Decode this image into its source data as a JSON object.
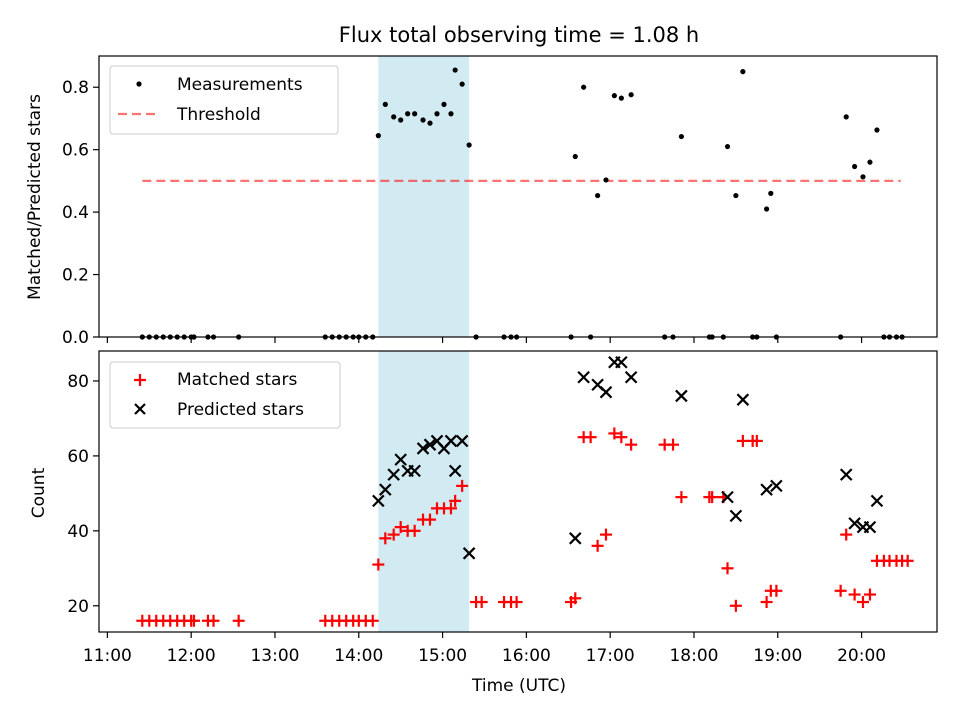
{
  "figure": {
    "title": "Flux total observing time = 1.08 h",
    "xlabel": "Time (UTC)",
    "xticks": [
      "11:00",
      "12:00",
      "13:00",
      "14:00",
      "15:00",
      "16:00",
      "17:00",
      "18:00",
      "19:00",
      "20:00"
    ]
  },
  "chart_data": [
    {
      "type": "scatter",
      "title": "Flux total observing time = 1.08 h",
      "xlabel": "",
      "ylabel": "Matched/Predicted stars",
      "xlim": [
        "10:54",
        "20:54"
      ],
      "ylim": [
        0,
        0.9
      ],
      "yticks": [
        "0.0",
        "0.2",
        "0.4",
        "0.6",
        "0.8"
      ],
      "legend_position": "upper-left",
      "grid": false,
      "shaded_interval": {
        "from": "14:14",
        "to": "15:19",
        "color": "#add8e6"
      },
      "threshold": {
        "name": "Threshold",
        "value": 0.5,
        "from": "11:25",
        "to": "20:28",
        "color": "#ff0000"
      },
      "series": [
        {
          "name": "Measurements",
          "marker": "dot",
          "color": "#000000",
          "points": [
            [
              "11:25",
              0
            ],
            [
              "11:30",
              0
            ],
            [
              "11:35",
              0
            ],
            [
              "11:40",
              0
            ],
            [
              "11:45",
              0
            ],
            [
              "11:50",
              0
            ],
            [
              "11:55",
              0
            ],
            [
              "12:00",
              0
            ],
            [
              "12:02",
              0
            ],
            [
              "12:12",
              0
            ],
            [
              "12:16",
              0
            ],
            [
              "12:34",
              0
            ],
            [
              "13:36",
              0
            ],
            [
              "13:41",
              0
            ],
            [
              "13:46",
              0
            ],
            [
              "13:51",
              0
            ],
            [
              "13:56",
              0
            ],
            [
              "14:00",
              0
            ],
            [
              "14:05",
              0
            ],
            [
              "14:10",
              0
            ],
            [
              "14:14",
              0.645
            ],
            [
              "14:19",
              0.745
            ],
            [
              "14:25",
              0.705
            ],
            [
              "14:30",
              0.695
            ],
            [
              "14:35",
              0.715
            ],
            [
              "14:40",
              0.715
            ],
            [
              "14:46",
              0.695
            ],
            [
              "14:51",
              0.685
            ],
            [
              "14:56",
              0.715
            ],
            [
              "15:01",
              0.745
            ],
            [
              "15:06",
              0.715
            ],
            [
              "15:09",
              0.855
            ],
            [
              "15:14",
              0.81
            ],
            [
              "15:19",
              0.615
            ],
            [
              "15:24",
              0
            ],
            [
              "15:44",
              0
            ],
            [
              "15:49",
              0
            ],
            [
              "15:53",
              0
            ],
            [
              "16:32",
              0
            ],
            [
              "16:35",
              0.578
            ],
            [
              "16:41",
              0.8
            ],
            [
              "16:46",
              0
            ],
            [
              "16:51",
              0.453
            ],
            [
              "16:57",
              0.503
            ],
            [
              "17:03",
              0.773
            ],
            [
              "17:08",
              0.765
            ],
            [
              "17:15",
              0.776
            ],
            [
              "17:39",
              0
            ],
            [
              "17:45",
              0
            ],
            [
              "17:51",
              0.642
            ],
            [
              "18:11",
              0
            ],
            [
              "18:13",
              0
            ],
            [
              "18:21",
              0
            ],
            [
              "18:24",
              0.61
            ],
            [
              "18:30",
              0.453
            ],
            [
              "18:35",
              0.85
            ],
            [
              "18:42",
              0
            ],
            [
              "18:45",
              0
            ],
            [
              "18:52",
              0.41
            ],
            [
              "18:55",
              0.46
            ],
            [
              "18:59",
              0
            ],
            [
              "19:45",
              0
            ],
            [
              "19:49",
              0.705
            ],
            [
              "19:55",
              0.546
            ],
            [
              "20:01",
              0.513
            ],
            [
              "20:06",
              0.56
            ],
            [
              "20:11",
              0.663
            ],
            [
              "20:16",
              0
            ],
            [
              "20:20",
              0
            ],
            [
              "20:25",
              0
            ],
            [
              "20:29",
              0
            ]
          ]
        }
      ]
    },
    {
      "type": "scatter",
      "xlabel": "Time (UTC)",
      "ylabel": "Count",
      "xlim": [
        "10:54",
        "20:54"
      ],
      "ylim": [
        13,
        88
      ],
      "yticks": [
        "20",
        "40",
        "60",
        "80"
      ],
      "legend_position": "upper-left",
      "grid": false,
      "shaded_interval": {
        "from": "14:14",
        "to": "15:19",
        "color": "#add8e6"
      },
      "series": [
        {
          "name": "Matched stars",
          "marker": "plus",
          "color": "#ff0000",
          "points": [
            [
              "11:25",
              16
            ],
            [
              "11:30",
              16
            ],
            [
              "11:35",
              16
            ],
            [
              "11:40",
              16
            ],
            [
              "11:45",
              16
            ],
            [
              "11:50",
              16
            ],
            [
              "11:55",
              16
            ],
            [
              "12:00",
              16
            ],
            [
              "12:02",
              16
            ],
            [
              "12:12",
              16
            ],
            [
              "12:16",
              16
            ],
            [
              "12:34",
              16
            ],
            [
              "13:36",
              16
            ],
            [
              "13:41",
              16
            ],
            [
              "13:46",
              16
            ],
            [
              "13:51",
              16
            ],
            [
              "13:56",
              16
            ],
            [
              "14:00",
              16
            ],
            [
              "14:05",
              16
            ],
            [
              "14:10",
              16
            ],
            [
              "14:14",
              31
            ],
            [
              "14:19",
              38
            ],
            [
              "14:25",
              39
            ],
            [
              "14:30",
              41
            ],
            [
              "14:35",
              40
            ],
            [
              "14:40",
              40
            ],
            [
              "14:46",
              43
            ],
            [
              "14:51",
              43
            ],
            [
              "14:56",
              46
            ],
            [
              "15:01",
              46
            ],
            [
              "15:06",
              46
            ],
            [
              "15:09",
              48
            ],
            [
              "15:14",
              52
            ],
            [
              "15:24",
              21
            ],
            [
              "15:28",
              21
            ],
            [
              "15:44",
              21
            ],
            [
              "15:49",
              21
            ],
            [
              "15:53",
              21
            ],
            [
              "16:32",
              21
            ],
            [
              "16:35",
              22
            ],
            [
              "16:41",
              65
            ],
            [
              "16:46",
              65
            ],
            [
              "16:51",
              36
            ],
            [
              "16:57",
              39
            ],
            [
              "17:03",
              66
            ],
            [
              "17:08",
              65
            ],
            [
              "17:15",
              63
            ],
            [
              "17:39",
              63
            ],
            [
              "17:45",
              63
            ],
            [
              "17:51",
              49
            ],
            [
              "18:11",
              49
            ],
            [
              "18:13",
              49
            ],
            [
              "18:21",
              49
            ],
            [
              "18:24",
              30
            ],
            [
              "18:30",
              20
            ],
            [
              "18:35",
              64
            ],
            [
              "18:42",
              64
            ],
            [
              "18:45",
              64
            ],
            [
              "18:52",
              21
            ],
            [
              "18:55",
              24
            ],
            [
              "18:59",
              24
            ],
            [
              "19:45",
              24
            ],
            [
              "19:49",
              39
            ],
            [
              "19:55",
              23
            ],
            [
              "20:01",
              21
            ],
            [
              "20:06",
              23
            ],
            [
              "20:11",
              32
            ],
            [
              "20:16",
              32
            ],
            [
              "20:20",
              32
            ],
            [
              "20:25",
              32
            ],
            [
              "20:29",
              32
            ],
            [
              "20:33",
              32
            ]
          ]
        },
        {
          "name": "Predicted stars",
          "marker": "x",
          "color": "#000000",
          "points": [
            [
              "14:14",
              48
            ],
            [
              "14:19",
              51
            ],
            [
              "14:25",
              55
            ],
            [
              "14:30",
              59
            ],
            [
              "14:35",
              56
            ],
            [
              "14:40",
              56
            ],
            [
              "14:46",
              62
            ],
            [
              "14:51",
              63
            ],
            [
              "14:56",
              64
            ],
            [
              "15:01",
              62
            ],
            [
              "15:06",
              64
            ],
            [
              "15:09",
              56
            ],
            [
              "15:14",
              64
            ],
            [
              "15:19",
              34
            ],
            [
              "16:35",
              38
            ],
            [
              "16:41",
              81
            ],
            [
              "16:51",
              79
            ],
            [
              "16:57",
              77
            ],
            [
              "17:03",
              85
            ],
            [
              "17:08",
              85
            ],
            [
              "17:15",
              81
            ],
            [
              "17:51",
              76
            ],
            [
              "18:24",
              49
            ],
            [
              "18:30",
              44
            ],
            [
              "18:35",
              75
            ],
            [
              "18:52",
              51
            ],
            [
              "18:59",
              52
            ],
            [
              "19:49",
              55
            ],
            [
              "19:55",
              42
            ],
            [
              "20:01",
              41
            ],
            [
              "20:06",
              41
            ],
            [
              "20:11",
              48
            ]
          ]
        }
      ]
    }
  ]
}
